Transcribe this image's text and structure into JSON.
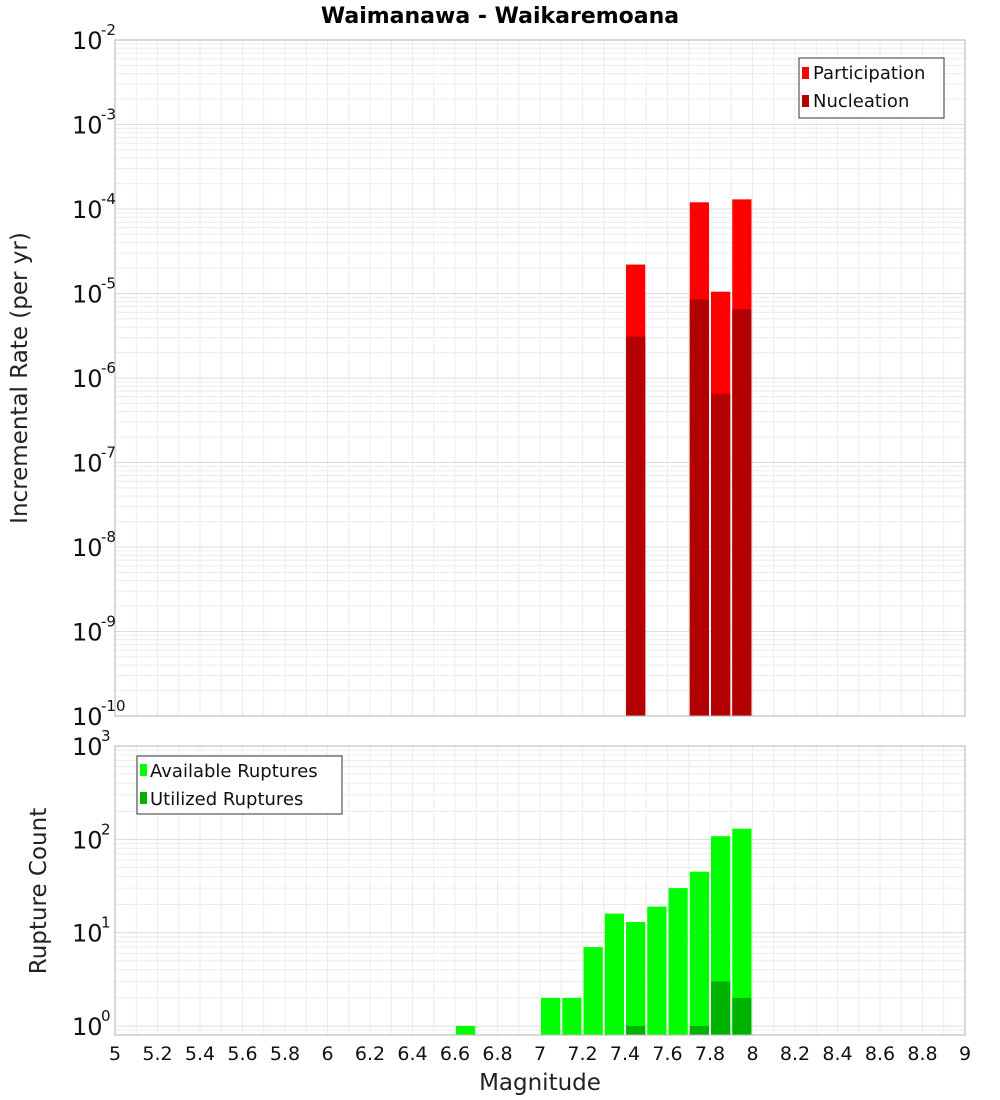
{
  "title": "Waimanawa - Waikaremoana",
  "chart_data": [
    {
      "type": "bar",
      "panel": "top",
      "ylabel": "Incremental Rate (per yr)",
      "yscale": "log",
      "ylim": [
        1e-10,
        0.01
      ],
      "y_tick_exponents": [
        -2,
        -3,
        -4,
        -5,
        -6,
        -7,
        -8,
        -9,
        -10
      ],
      "grid": true,
      "legend_position": "top-right",
      "series": [
        {
          "name": "Participation",
          "color": "#ff0000",
          "points": [
            {
              "x": 7.45,
              "y": 2.2e-05
            },
            {
              "x": 7.75,
              "y": 0.00012
            },
            {
              "x": 7.85,
              "y": 1.05e-05
            },
            {
              "x": 7.95,
              "y": 0.00013
            }
          ]
        },
        {
          "name": "Nucleation",
          "color": "#b30000",
          "points": [
            {
              "x": 7.45,
              "y": 3.1e-06
            },
            {
              "x": 7.75,
              "y": 8.5e-06
            },
            {
              "x": 7.85,
              "y": 6.5e-07
            },
            {
              "x": 7.95,
              "y": 6.5e-06
            }
          ]
        }
      ]
    },
    {
      "type": "bar",
      "panel": "bottom",
      "ylabel": "Rupture Count",
      "xlabel": "Magnitude",
      "yscale": "log",
      "ylim": [
        0.8,
        1000
      ],
      "y_tick_exponents": [
        3,
        2,
        1,
        0
      ],
      "xlim": [
        5,
        9
      ],
      "x_ticks": [
        "5",
        "5.2",
        "5.4",
        "5.6",
        "5.8",
        "6",
        "6.2",
        "6.4",
        "6.6",
        "6.8",
        "7",
        "7.2",
        "7.4",
        "7.6",
        "7.8",
        "8",
        "8.2",
        "8.4",
        "8.6",
        "8.8",
        "9"
      ],
      "grid": true,
      "legend_position": "top-left",
      "series": [
        {
          "name": "Available Ruptures",
          "color": "#00ff00",
          "points": [
            {
              "x": 6.65,
              "y": 1
            },
            {
              "x": 7.05,
              "y": 2
            },
            {
              "x": 7.15,
              "y": 2
            },
            {
              "x": 7.25,
              "y": 7
            },
            {
              "x": 7.35,
              "y": 16
            },
            {
              "x": 7.45,
              "y": 13
            },
            {
              "x": 7.55,
              "y": 19
            },
            {
              "x": 7.65,
              "y": 30
            },
            {
              "x": 7.75,
              "y": 45
            },
            {
              "x": 7.85,
              "y": 108
            },
            {
              "x": 7.95,
              "y": 130
            }
          ]
        },
        {
          "name": "Utilized Ruptures",
          "color": "#00b300",
          "points": [
            {
              "x": 7.45,
              "y": 1
            },
            {
              "x": 7.75,
              "y": 1
            },
            {
              "x": 7.85,
              "y": 3
            },
            {
              "x": 7.95,
              "y": 2
            }
          ]
        }
      ]
    }
  ]
}
